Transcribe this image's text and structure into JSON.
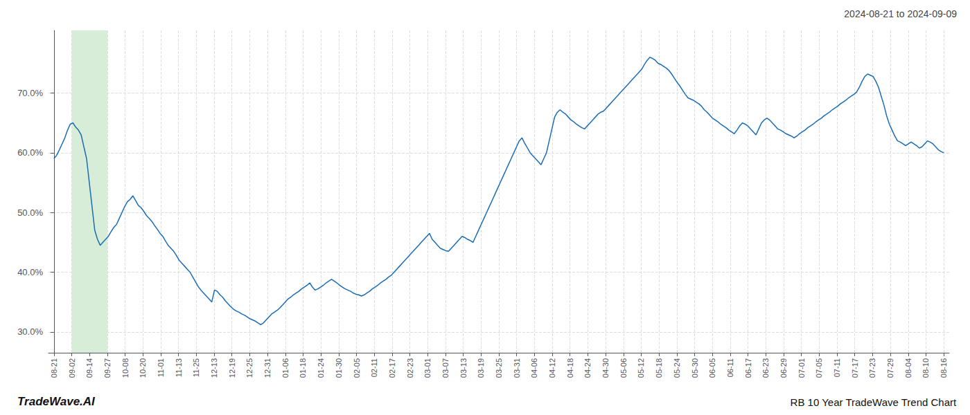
{
  "chart_data": {
    "type": "line",
    "title": "RB 10 Year TradeWave Trend Chart",
    "subtitle": "2024-08-21 to 2024-09-09",
    "annotations": [
      "TradeWave.AI"
    ],
    "color": "#1a6cb5",
    "grid": true,
    "highlight": {
      "x": [
        6.54,
        19.62
      ],
      "color": "#d8edd8"
    },
    "xlim": [
      -2,
      329
    ],
    "xticks": [
      {
        "value": 0,
        "label": "08-21"
      },
      {
        "value": 6.54,
        "label": "09-02"
      },
      {
        "value": 13.08,
        "label": "09-14"
      },
      {
        "value": 19.62,
        "label": "09-27"
      },
      {
        "value": 26.16,
        "label": "10-08"
      },
      {
        "value": 32.7,
        "label": "10-20"
      },
      {
        "value": 39.24,
        "label": "11-01"
      },
      {
        "value": 45.78,
        "label": "11-13"
      },
      {
        "value": 52.32,
        "label": "11-25"
      },
      {
        "value": 58.86,
        "label": "12-13"
      },
      {
        "value": 65.4,
        "label": "12-19"
      },
      {
        "value": 71.94,
        "label": "12-25"
      },
      {
        "value": 78.48,
        "label": "12-31"
      },
      {
        "value": 85.02,
        "label": "01-06"
      },
      {
        "value": 91.56,
        "label": "01-18"
      },
      {
        "value": 98.1,
        "label": "01-24"
      },
      {
        "value": 104.64,
        "label": "01-30"
      },
      {
        "value": 111.18,
        "label": "02-05"
      },
      {
        "value": 117.72,
        "label": "02-11"
      },
      {
        "value": 124.26,
        "label": "02-17"
      },
      {
        "value": 130.8,
        "label": "02-23"
      },
      {
        "value": 137.34,
        "label": "03-01"
      },
      {
        "value": 143.88,
        "label": "03-07"
      },
      {
        "value": 150.42,
        "label": "03-13"
      },
      {
        "value": 156.96,
        "label": "03-19"
      },
      {
        "value": 163.5,
        "label": "03-25"
      },
      {
        "value": 170.04,
        "label": "03-31"
      },
      {
        "value": 176.58,
        "label": "04-06"
      },
      {
        "value": 183.12,
        "label": "04-12"
      },
      {
        "value": 189.66,
        "label": "04-18"
      },
      {
        "value": 196.2,
        "label": "04-24"
      },
      {
        "value": 202.74,
        "label": "04-30"
      },
      {
        "value": 209.28,
        "label": "05-06"
      },
      {
        "value": 215.82,
        "label": "05-12"
      },
      {
        "value": 222.36,
        "label": "05-18"
      },
      {
        "value": 228.9,
        "label": "05-24"
      },
      {
        "value": 235.44,
        "label": "05-30"
      },
      {
        "value": 241.98,
        "label": "06-05"
      },
      {
        "value": 248.52,
        "label": "06-11"
      },
      {
        "value": 255.06,
        "label": "06-17"
      },
      {
        "value": 261.6,
        "label": "06-23"
      },
      {
        "value": 268.14,
        "label": "06-29"
      },
      {
        "value": 274.68,
        "label": "07-01"
      },
      {
        "value": 281.22,
        "label": "07-05"
      },
      {
        "value": 287.76,
        "label": "07-11"
      },
      {
        "value": 294.3,
        "label": "07-17"
      },
      {
        "value": 300.84,
        "label": "07-23"
      },
      {
        "value": 307.38,
        "label": "07-29"
      },
      {
        "value": 313.92,
        "label": "08-04"
      },
      {
        "value": 320.46,
        "label": "08-10"
      },
      {
        "value": 327,
        "label": "08-16"
      }
    ],
    "ylim": [
      0.265,
      0.805
    ],
    "yticks": [
      {
        "value": 0.3,
        "label": "30.0%"
      },
      {
        "value": 0.4,
        "label": "40.0%"
      },
      {
        "value": 0.5,
        "label": "50.0%"
      },
      {
        "value": 0.6,
        "label": "60.0%"
      },
      {
        "value": 0.7,
        "label": "70.0%"
      }
    ],
    "x": [
      0,
      1,
      2,
      3,
      4,
      5,
      6,
      7,
      8,
      9,
      10,
      11,
      12,
      13,
      14,
      15,
      16,
      17,
      18,
      19,
      20,
      21,
      22,
      23,
      24,
      25,
      26,
      27,
      28,
      29,
      30,
      31,
      32,
      33,
      34,
      35,
      36,
      37,
      38,
      39,
      40,
      41,
      42,
      43,
      44,
      45,
      46,
      47,
      48,
      49,
      50,
      51,
      52,
      53,
      54,
      55,
      56,
      57,
      58,
      59,
      60,
      61,
      62,
      63,
      64,
      65,
      66,
      67,
      68,
      69,
      70,
      71,
      72,
      73,
      74,
      75,
      76,
      77,
      78,
      79,
      80,
      81,
      82,
      83,
      84,
      85,
      86,
      87,
      88,
      89,
      90,
      91,
      92,
      93,
      94,
      95,
      96,
      97,
      98,
      99,
      100,
      101,
      102,
      103,
      104,
      105,
      106,
      107,
      108,
      109,
      110,
      111,
      112,
      113,
      114,
      115,
      116,
      117,
      118,
      119,
      120,
      121,
      122,
      123,
      124,
      125,
      126,
      127,
      128,
      129,
      130,
      131,
      132,
      133,
      134,
      135,
      136,
      137,
      138,
      139,
      140,
      141,
      142,
      143,
      144,
      145,
      146,
      147,
      148,
      149,
      150,
      151,
      152,
      153,
      154,
      155,
      156,
      157,
      158,
      159,
      160,
      161,
      162,
      163,
      164,
      165,
      166,
      167,
      168,
      169,
      170,
      171,
      172,
      173,
      174,
      175,
      176,
      177,
      178,
      179,
      180,
      181,
      182,
      183,
      184,
      185,
      186,
      187,
      188,
      189,
      190,
      191,
      192,
      193,
      194,
      195,
      196,
      197,
      198,
      199,
      200,
      201,
      202,
      203,
      204,
      205,
      206,
      207,
      208,
      209,
      210,
      211,
      212,
      213,
      214,
      215,
      216,
      217,
      218,
      219,
      220,
      221,
      222,
      223,
      224,
      225,
      226,
      227,
      228,
      229,
      230,
      231,
      232,
      233,
      234,
      235,
      236,
      237,
      238,
      239,
      240,
      241,
      242,
      243,
      244,
      245,
      246,
      247,
      248,
      249,
      250,
      251,
      252,
      253,
      254,
      255,
      256,
      257,
      258,
      259,
      260,
      261,
      262,
      263,
      264,
      265,
      266,
      267,
      268,
      269,
      270,
      271,
      272,
      273,
      274,
      275,
      276,
      277,
      278,
      279,
      280,
      281,
      282,
      283,
      284,
      285,
      286,
      287,
      288,
      289,
      290,
      291,
      292,
      293,
      294,
      295,
      296,
      297,
      298,
      299,
      300,
      301,
      302,
      303,
      304,
      305,
      306,
      307,
      308,
      309,
      310,
      311,
      312,
      313,
      314,
      315,
      316,
      317,
      318,
      319,
      320,
      321,
      322,
      323,
      324,
      325,
      326,
      327
    ],
    "values": [
      0.59,
      0.596,
      0.605,
      0.615,
      0.625,
      0.638,
      0.648,
      0.65,
      0.643,
      0.638,
      0.63,
      0.61,
      0.59,
      0.55,
      0.51,
      0.47,
      0.455,
      0.445,
      0.45,
      0.455,
      0.46,
      0.468,
      0.475,
      0.48,
      0.49,
      0.5,
      0.51,
      0.518,
      0.522,
      0.528,
      0.52,
      0.512,
      0.508,
      0.502,
      0.495,
      0.49,
      0.485,
      0.478,
      0.472,
      0.465,
      0.46,
      0.452,
      0.445,
      0.44,
      0.435,
      0.428,
      0.42,
      0.415,
      0.41,
      0.405,
      0.4,
      0.392,
      0.384,
      0.376,
      0.37,
      0.365,
      0.36,
      0.355,
      0.35,
      0.37,
      0.368,
      0.362,
      0.358,
      0.352,
      0.347,
      0.342,
      0.338,
      0.335,
      0.333,
      0.33,
      0.328,
      0.325,
      0.322,
      0.32,
      0.318,
      0.315,
      0.312,
      0.315,
      0.32,
      0.325,
      0.33,
      0.333,
      0.336,
      0.34,
      0.345,
      0.35,
      0.355,
      0.358,
      0.362,
      0.365,
      0.368,
      0.372,
      0.375,
      0.378,
      0.382,
      0.375,
      0.37,
      0.372,
      0.375,
      0.378,
      0.382,
      0.385,
      0.388,
      0.385,
      0.382,
      0.378,
      0.375,
      0.372,
      0.37,
      0.368,
      0.365,
      0.363,
      0.362,
      0.36,
      0.362,
      0.365,
      0.368,
      0.372,
      0.375,
      0.378,
      0.382,
      0.385,
      0.388,
      0.392,
      0.395,
      0.4,
      0.405,
      0.41,
      0.415,
      0.42,
      0.425,
      0.43,
      0.435,
      0.44,
      0.445,
      0.45,
      0.455,
      0.46,
      0.465,
      0.455,
      0.45,
      0.445,
      0.44,
      0.438,
      0.436,
      0.435,
      0.44,
      0.445,
      0.45,
      0.455,
      0.46,
      0.458,
      0.455,
      0.453,
      0.45,
      0.46,
      0.47,
      0.48,
      0.49,
      0.5,
      0.51,
      0.52,
      0.53,
      0.54,
      0.55,
      0.56,
      0.57,
      0.58,
      0.59,
      0.6,
      0.61,
      0.62,
      0.625,
      0.616,
      0.608,
      0.6,
      0.595,
      0.59,
      0.585,
      0.58,
      0.59,
      0.6,
      0.62,
      0.64,
      0.66,
      0.668,
      0.672,
      0.668,
      0.665,
      0.66,
      0.655,
      0.652,
      0.648,
      0.645,
      0.642,
      0.64,
      0.645,
      0.65,
      0.655,
      0.66,
      0.665,
      0.668,
      0.67,
      0.675,
      0.68,
      0.685,
      0.69,
      0.695,
      0.7,
      0.705,
      0.71,
      0.715,
      0.72,
      0.725,
      0.73,
      0.735,
      0.74,
      0.748,
      0.755,
      0.76,
      0.758,
      0.755,
      0.75,
      0.748,
      0.745,
      0.742,
      0.738,
      0.732,
      0.725,
      0.718,
      0.712,
      0.705,
      0.698,
      0.692,
      0.69,
      0.688,
      0.685,
      0.682,
      0.678,
      0.672,
      0.668,
      0.663,
      0.658,
      0.655,
      0.652,
      0.648,
      0.645,
      0.642,
      0.638,
      0.635,
      0.632,
      0.638,
      0.645,
      0.65,
      0.648,
      0.645,
      0.64,
      0.635,
      0.63,
      0.64,
      0.65,
      0.655,
      0.658,
      0.655,
      0.65,
      0.645,
      0.64,
      0.638,
      0.635,
      0.632,
      0.63,
      0.628,
      0.625,
      0.628,
      0.632,
      0.635,
      0.638,
      0.642,
      0.645,
      0.648,
      0.652,
      0.655,
      0.658,
      0.662,
      0.665,
      0.668,
      0.672,
      0.675,
      0.678,
      0.682,
      0.685,
      0.688,
      0.692,
      0.695,
      0.698,
      0.702,
      0.71,
      0.72,
      0.728,
      0.732,
      0.73,
      0.728,
      0.72,
      0.71,
      0.695,
      0.68,
      0.662,
      0.648,
      0.638,
      0.628,
      0.62,
      0.618,
      0.615,
      0.612,
      0.615,
      0.618,
      0.615,
      0.612,
      0.608,
      0.61,
      0.615,
      0.62,
      0.618,
      0.615,
      0.61,
      0.605,
      0.602,
      0.6
    ]
  }
}
